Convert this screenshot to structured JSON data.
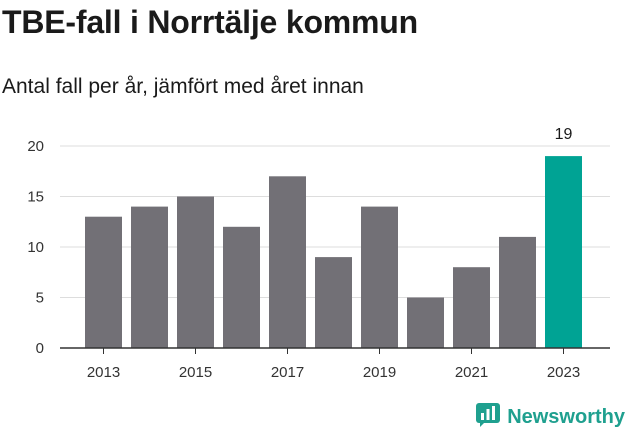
{
  "title": "TBE-fall i Norrtälje kommun",
  "subtitle": "Antal fall per år, jämfört med året innan",
  "brand": {
    "name": "Newsworthy",
    "icon": "newsworthy-logo-icon",
    "color": "#1fa08f"
  },
  "colors": {
    "bar": "#727076",
    "highlight": "#00a394",
    "grid": "#dddddd",
    "axis": "#333333"
  },
  "chart_data": {
    "type": "bar",
    "title": "TBE-fall i Norrtälje kommun",
    "subtitle": "Antal fall per år, jämfört med året innan",
    "xlabel": "",
    "ylabel": "",
    "categories": [
      2013,
      2014,
      2015,
      2016,
      2017,
      2018,
      2019,
      2020,
      2021,
      2022,
      2023
    ],
    "values": [
      13,
      14,
      15,
      12,
      17,
      9,
      14,
      5,
      8,
      11,
      19
    ],
    "highlight_category": 2023,
    "data_labels": [
      {
        "category": 2023,
        "text": "19"
      }
    ],
    "ylim": [
      0,
      20
    ],
    "yticks": [
      0,
      5,
      10,
      15,
      20
    ],
    "xtick_labels": [
      2013,
      2015,
      2017,
      2019,
      2021,
      2023
    ],
    "grid": true,
    "legend": "none"
  }
}
